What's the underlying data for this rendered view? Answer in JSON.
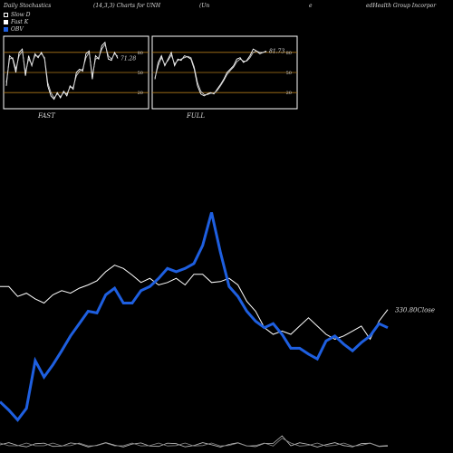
{
  "header": {
    "left": "Daily Stochastics",
    "params": "(14,3,3) Charts for UNH",
    "company_start": "(Un",
    "company_mid": "e",
    "company_end": "edHealth Group Incorpor"
  },
  "legend": {
    "items": [
      {
        "label": "Slow D",
        "color": "#000000"
      },
      {
        "label": "Fast K",
        "color": "#ffffff"
      },
      {
        "label": "OBV",
        "color": "#1e5fe0"
      }
    ]
  },
  "colors": {
    "background": "#000000",
    "price": "#ffffff",
    "obv": "#1e5fe0",
    "level_line": "#b07a1a"
  },
  "chart_data": [
    {
      "type": "line",
      "panel": "FAST",
      "title": "FAST",
      "ylim": [
        0,
        100
      ],
      "levels": [
        80,
        50,
        20
      ],
      "tick_labels": [
        "80",
        "50",
        "20"
      ],
      "last_value_label": "71.28",
      "series": [
        {
          "values": [
            30,
            75,
            70,
            50,
            80,
            85,
            45,
            75,
            60,
            78,
            72,
            80,
            70,
            30,
            15,
            10,
            20,
            12,
            22,
            15,
            30,
            25,
            50,
            55,
            52,
            78,
            82,
            40,
            75,
            70,
            90,
            95,
            70,
            68,
            80,
            71
          ]
        },
        {
          "values": [
            35,
            70,
            72,
            55,
            75,
            82,
            50,
            70,
            62,
            75,
            74,
            78,
            72,
            35,
            20,
            12,
            18,
            14,
            20,
            18,
            28,
            28,
            45,
            52,
            55,
            72,
            80,
            45,
            70,
            72,
            85,
            92,
            75,
            70,
            78,
            74
          ]
        }
      ]
    },
    {
      "type": "line",
      "panel": "FULL",
      "title": "FULL",
      "ylim": [
        0,
        100
      ],
      "levels": [
        80,
        50,
        20
      ],
      "tick_labels": [
        "80",
        "50",
        "20"
      ],
      "last_value_label": "81.73",
      "series": [
        {
          "values": [
            40,
            65,
            75,
            60,
            70,
            80,
            60,
            70,
            68,
            75,
            73,
            70,
            55,
            30,
            18,
            15,
            18,
            20,
            18,
            25,
            32,
            40,
            50,
            55,
            60,
            70,
            72,
            65,
            68,
            75,
            85,
            82,
            78,
            80,
            82
          ]
        },
        {
          "values": [
            42,
            60,
            72,
            62,
            68,
            76,
            63,
            68,
            70,
            72,
            74,
            72,
            58,
            35,
            22,
            17,
            17,
            19,
            19,
            23,
            30,
            38,
            47,
            53,
            58,
            66,
            70,
            67,
            67,
            72,
            80,
            82,
            80,
            80,
            81
          ]
        }
      ]
    },
    {
      "type": "line",
      "panel": "main",
      "close_label": "330.80Close",
      "series": [
        {
          "values": [
            350,
            350,
            338,
            342,
            335,
            330,
            340,
            345,
            342,
            348,
            352,
            357,
            368,
            376,
            372,
            364,
            355,
            360,
            352,
            355,
            360,
            352,
            365,
            365,
            355,
            356,
            360,
            352,
            332,
            320,
            300,
            292,
            296,
            292,
            302,
            312,
            302,
            292,
            286,
            290,
            296,
            302,
            286,
            308,
            322
          ]
        },
        {
          "values": [
            210,
            200,
            188,
            202,
            260,
            240,
            255,
            272,
            290,
            305,
            320,
            318,
            340,
            348,
            330,
            330,
            345,
            350,
            360,
            372,
            368,
            372,
            378,
            400,
            440,
            392,
            350,
            338,
            320,
            308,
            300,
            305,
            292,
            275,
            275,
            268,
            262,
            284,
            290,
            280,
            272,
            282,
            290,
            305,
            300
          ]
        }
      ]
    }
  ]
}
